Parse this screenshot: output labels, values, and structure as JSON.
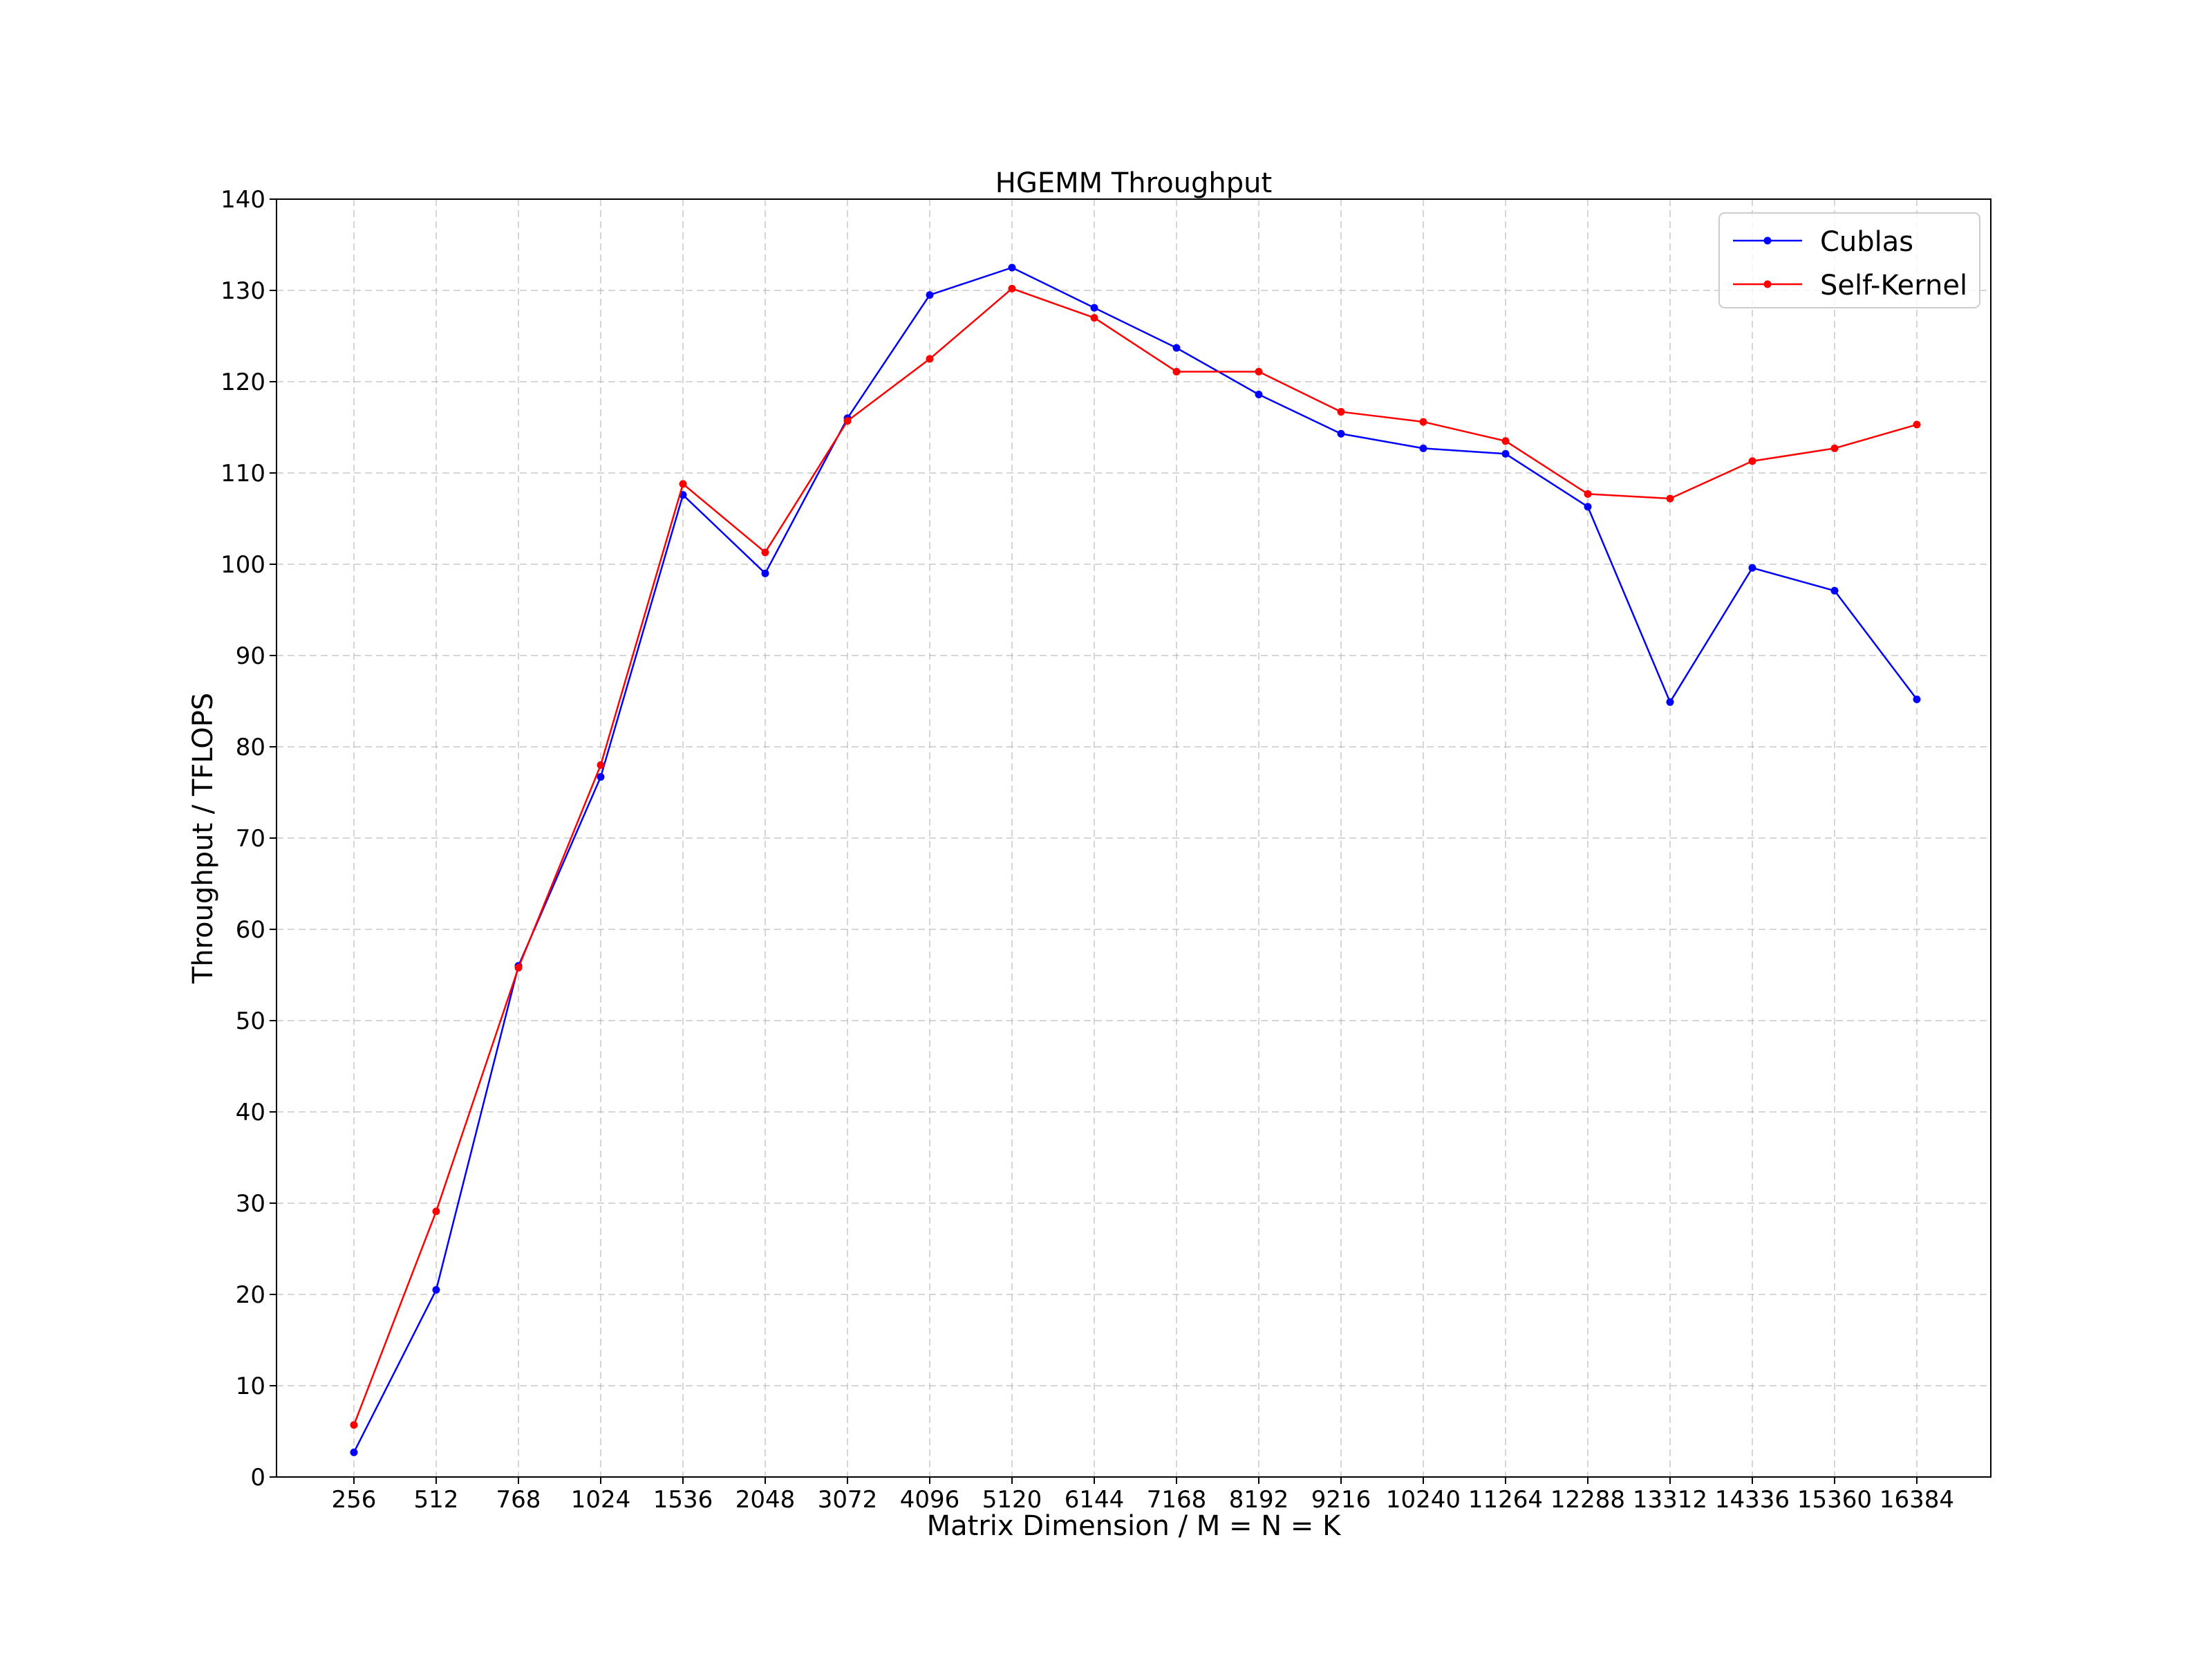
{
  "chart_data": {
    "type": "line",
    "title": "HGEMM Throughput",
    "xlabel": "Matrix Dimension / M = N = K",
    "ylabel": "Throughput / TFLOPS",
    "categories": [
      "256",
      "512",
      "768",
      "1024",
      "1536",
      "2048",
      "3072",
      "4096",
      "5120",
      "6144",
      "7168",
      "8192",
      "9216",
      "10240",
      "11264",
      "12288",
      "13312",
      "14336",
      "15360",
      "16384"
    ],
    "ylim": [
      0,
      140
    ],
    "yticks": [
      0,
      10,
      20,
      30,
      40,
      50,
      60,
      70,
      80,
      90,
      100,
      110,
      120,
      130,
      140
    ],
    "grid": true,
    "legend_position": "top-right",
    "series": [
      {
        "name": "Cublas",
        "color": "#0000ff",
        "values": [
          2.7,
          20.5,
          56.0,
          76.7,
          107.6,
          99.0,
          116.0,
          129.5,
          132.5,
          128.1,
          123.7,
          118.6,
          114.3,
          112.7,
          112.1,
          106.3,
          84.9,
          99.6,
          97.1,
          85.2
        ]
      },
      {
        "name": "Self-Kernel",
        "color": "#ff0000",
        "values": [
          5.7,
          29.1,
          55.8,
          78.0,
          108.8,
          101.3,
          115.7,
          122.5,
          130.2,
          127.0,
          121.1,
          121.1,
          116.7,
          115.6,
          113.5,
          107.7,
          107.2,
          111.3,
          112.7,
          115.3
        ]
      }
    ]
  }
}
